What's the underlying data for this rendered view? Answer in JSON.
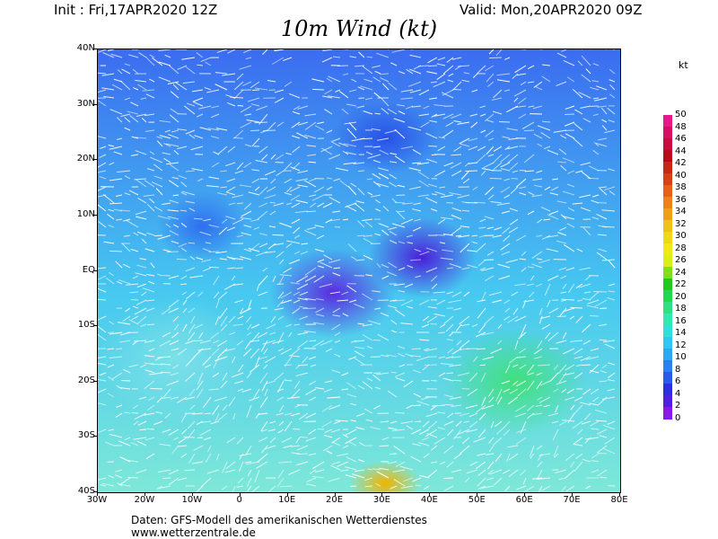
{
  "header": {
    "init": "Init : Fri,17APR2020 12Z",
    "valid": "Valid: Mon,20APR2020 09Z",
    "title": "10m Wind (kt)"
  },
  "map": {
    "lat_labels": [
      "40N",
      "30N",
      "20N",
      "10N",
      "EQ",
      "10S",
      "20S",
      "30S",
      "40S"
    ],
    "lon_labels": [
      "30W",
      "20W",
      "10W",
      "0",
      "10E",
      "20E",
      "30E",
      "40E",
      "50E",
      "60E",
      "70E",
      "80E"
    ],
    "extent": {
      "lon_min": -30,
      "lon_max": 80,
      "lat_min": -40,
      "lat_max": 40
    }
  },
  "colorbar": {
    "unit": "kt",
    "labels": [
      "50",
      "48",
      "46",
      "44",
      "42",
      "40",
      "38",
      "36",
      "34",
      "32",
      "30",
      "28",
      "26",
      "24",
      "22",
      "20",
      "18",
      "16",
      "14",
      "12",
      "10",
      "8",
      "6",
      "4",
      "2",
      "0"
    ],
    "colors": [
      "#e8188c",
      "#d80c60",
      "#c80a3c",
      "#b80a1c",
      "#c82818",
      "#d84018",
      "#e86018",
      "#f08018",
      "#f0a018",
      "#f0c018",
      "#f0d818",
      "#f0e818",
      "#d8f018",
      "#80e018",
      "#20c820",
      "#20d850",
      "#30e080",
      "#30e8b0",
      "#30e0d8",
      "#30c8f0",
      "#2aa8f0",
      "#2a80f0",
      "#2a58e8",
      "#2a30e0",
      "#5020e0",
      "#8a18e8"
    ]
  },
  "footer": {
    "line1": "Daten: GFS-Modell des amerikanischen Wetterdienstes",
    "line2": "www.wetterzentrale.de"
  }
}
